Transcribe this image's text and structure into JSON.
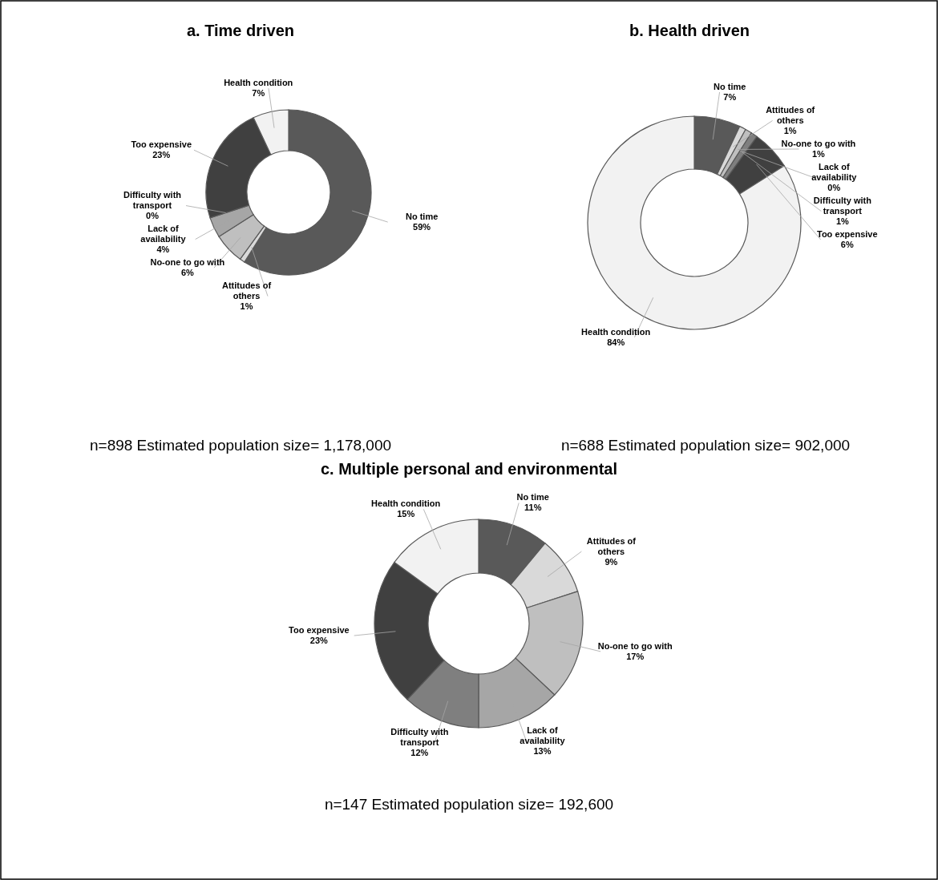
{
  "chart_data": [
    {
      "type": "donut",
      "title": "a. Time driven",
      "categories": [
        "No time",
        "Attitudes of others",
        "No-one to go with",
        "Lack of availability",
        "Difficulty with transport",
        "Too expensive",
        "Health condition"
      ],
      "values": [
        59,
        1,
        6,
        4,
        0,
        23,
        7
      ],
      "value_labels": [
        "59%",
        "1%",
        "6%",
        "4%",
        "0%",
        "23%",
        "7%"
      ],
      "colors": [
        "#595959",
        "#d9d9d9",
        "#bfbfbf",
        "#a6a6a6",
        "#7f7f7f",
        "#404040",
        "#f2f2f2"
      ],
      "annotations": [
        "n=898 Estimated population size= 1,178,000"
      ]
    },
    {
      "type": "donut",
      "title": "b. Health driven",
      "categories": [
        "No time",
        "Attitudes of others",
        "No-one to go with",
        "Lack of availability",
        "Difficulty with transport",
        "Too expensive",
        "Health condition"
      ],
      "values": [
        7,
        1,
        1,
        0,
        1,
        6,
        84
      ],
      "value_labels": [
        "7%",
        "1%",
        "1%",
        "0%",
        "1%",
        "6%",
        "84%"
      ],
      "colors": [
        "#595959",
        "#d9d9d9",
        "#bfbfbf",
        "#a6a6a6",
        "#7f7f7f",
        "#404040",
        "#f2f2f2"
      ],
      "annotations": [
        "n=688 Estimated population size= 902,000"
      ]
    },
    {
      "type": "donut",
      "title": "c. Multiple personal and environmental",
      "categories": [
        "No time",
        "Attitudes of others",
        "No-one to go with",
        "Lack of availability",
        "Difficulty with transport",
        "Too expensive",
        "Health condition"
      ],
      "values": [
        11,
        9,
        17,
        13,
        12,
        23,
        15
      ],
      "value_labels": [
        "11%",
        "9%",
        "17%",
        "13%",
        "12%",
        "23%",
        "15%"
      ],
      "colors": [
        "#595959",
        "#d9d9d9",
        "#bfbfbf",
        "#a6a6a6",
        "#7f7f7f",
        "#404040",
        "#f2f2f2"
      ],
      "annotations": [
        "n=147 Estimated population size= 192,600"
      ]
    }
  ]
}
